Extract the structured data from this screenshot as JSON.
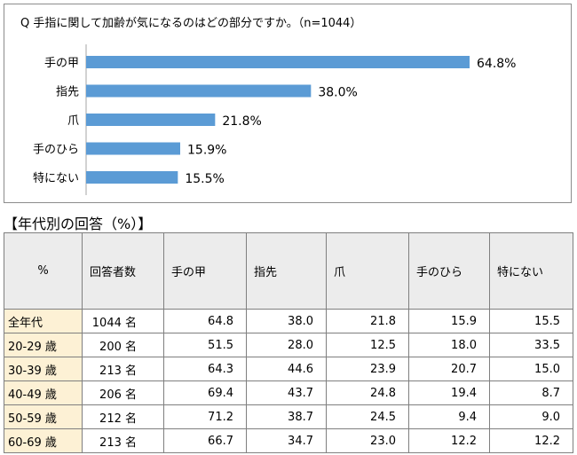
{
  "chart_data": {
    "type": "bar",
    "orientation": "horizontal",
    "title": "Q 手指に関して加齢が気になるのはどの部分ですか。（n=1044）",
    "categories": [
      "手の甲",
      "指先",
      "爪",
      "手のひら",
      "特にない"
    ],
    "values": [
      64.8,
      38.0,
      21.8,
      15.9,
      15.5
    ],
    "value_labels": [
      "64.8%",
      "38.0%",
      "21.8%",
      "15.9%",
      "15.5%"
    ],
    "bar_color": "#5b9bd5",
    "xlim": [
      0,
      72
    ],
    "axis_visible": false,
    "grid": false
  },
  "table_section": {
    "heading": "【年代別の回答（%）】",
    "headers": [
      "%",
      "回答者数",
      "手の甲",
      "指先",
      "爪",
      "手のひら",
      "特にない"
    ],
    "rows": [
      [
        "全年代",
        "1044 名",
        "64.8",
        "38.0",
        "21.8",
        "15.9",
        "15.5"
      ],
      [
        "20-29 歳",
        "200 名",
        "51.5",
        "28.0",
        "12.5",
        "18.0",
        "33.5"
      ],
      [
        "30-39 歳",
        "213 名",
        "64.3",
        "44.6",
        "23.9",
        "20.7",
        "15.0"
      ],
      [
        "40-49 歳",
        "206 名",
        "69.4",
        "43.7",
        "24.8",
        "19.4",
        "8.7"
      ],
      [
        "50-59 歳",
        "212 名",
        "71.2",
        "38.7",
        "24.5",
        "9.4",
        "9.0"
      ],
      [
        "60-69 歳",
        "213 名",
        "66.7",
        "34.7",
        "23.0",
        "12.2",
        "12.2"
      ]
    ]
  }
}
